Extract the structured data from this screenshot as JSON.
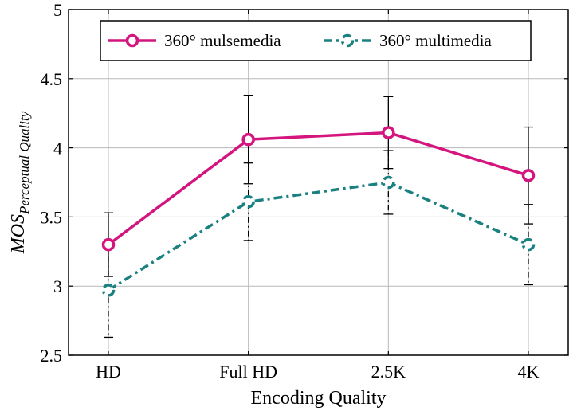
{
  "chart_data": {
    "type": "line",
    "title": "",
    "xlabel": "Encoding Quality",
    "ylabel_main": "MOS",
    "ylabel_sub": "Perceptual Quality",
    "categories": [
      "HD",
      "Full HD",
      "2.5K",
      "4K"
    ],
    "ylim": [
      2.5,
      5
    ],
    "yticks": [
      2.5,
      3,
      3.5,
      4,
      4.5,
      5
    ],
    "ytick_labels": [
      "2.5",
      "3",
      "3.5",
      "4",
      "4.5",
      "5"
    ],
    "grid": true,
    "legend_position": "top-center",
    "series": [
      {
        "name": "360° mulsemedia",
        "color": "#d4157d",
        "line_style": "solid",
        "marker": "circle",
        "values": [
          3.3,
          4.06,
          4.11,
          3.8
        ],
        "err_low": [
          3.07,
          3.74,
          3.85,
          3.45
        ],
        "err_high": [
          3.53,
          4.38,
          4.37,
          4.15
        ]
      },
      {
        "name": "360° multimedia",
        "color": "#1a8080",
        "line_style": "dash-dot",
        "marker": "circle",
        "values": [
          2.97,
          3.61,
          3.75,
          3.3
        ],
        "err_low": [
          2.63,
          3.33,
          3.52,
          3.01
        ],
        "err_high": [
          3.31,
          3.89,
          3.98,
          3.59
        ]
      }
    ]
  }
}
